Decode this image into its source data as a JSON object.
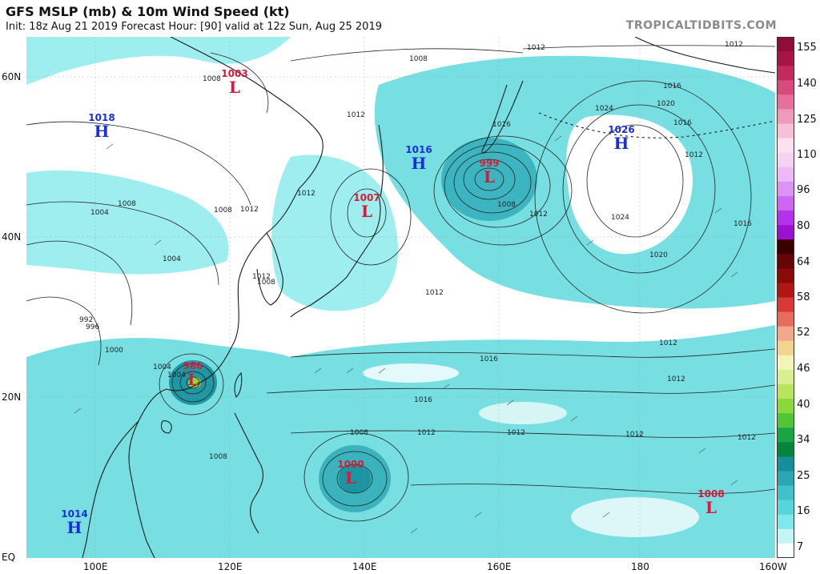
{
  "header": {
    "title": "GFS MSLP (mb) & 10m Wind Speed (kt)",
    "subtitle": "Init: 18z Aug 21 2019    Forecast Hour: [90]    valid at 12z Sun, Aug 25 2019",
    "brand": "TROPICALTIDBITS.COM"
  },
  "axes": {
    "lat_labels": [
      "60N",
      "40N",
      "20N",
      "EQ"
    ],
    "lon_labels": [
      "100E",
      "120E",
      "140E",
      "160E",
      "180",
      "160W"
    ]
  },
  "colorbar": {
    "labels": [
      "155",
      "140",
      "125",
      "110",
      "96",
      "80",
      "64",
      "58",
      "52",
      "46",
      "40",
      "34",
      "25",
      "16",
      "7"
    ],
    "colors": [
      "#f6fefe",
      "#c4f5f5",
      "#7ee8ea",
      "#54d6da",
      "#3fc2c9",
      "#2aa7b4",
      "#168f9c",
      "#05843e",
      "#18a645",
      "#52c436",
      "#8ad83c",
      "#b8e55c",
      "#d8ee8f",
      "#f2f5b8",
      "#f2d48f",
      "#f2a78f",
      "#e86b5c",
      "#d93838",
      "#b01616",
      "#8a0a0a",
      "#650505",
      "#3a0000",
      "#9a12cf",
      "#b532ea",
      "#cd66f2",
      "#dd93f5",
      "#ecb8f7",
      "#f6d3f3",
      "#fbe0ef",
      "#f6c0d8",
      "#ef99bb",
      "#e76f9b",
      "#d84a7c",
      "#c22a5e",
      "#a61546",
      "#8e0e36"
    ]
  },
  "pressure_centers": [
    {
      "type": "H",
      "value": "1018",
      "color": "#1a2fd8"
    },
    {
      "type": "L",
      "value": "1003",
      "color": "#d81a3a"
    },
    {
      "type": "H",
      "value": "1016",
      "color": "#1a2fd8"
    },
    {
      "type": "L",
      "value": "1007",
      "color": "#d81a3a"
    },
    {
      "type": "L",
      "value": "999",
      "color": "#d81a3a"
    },
    {
      "type": "H",
      "value": "1026",
      "color": "#1a2fd8"
    },
    {
      "type": "L",
      "value": "986",
      "color": "#d81a3a"
    },
    {
      "type": "L",
      "value": "1000",
      "color": "#d81a3a"
    },
    {
      "type": "L",
      "value": "1008",
      "color": "#d81a3a"
    },
    {
      "type": "H",
      "value": "1014",
      "color": "#1a2fd8"
    }
  ],
  "isobar_labels": [
    "1008",
    "1012",
    "1012",
    "1008",
    "1012",
    "1016",
    "1012",
    "1016",
    "1012",
    "1016",
    "1020",
    "1024",
    "1024",
    "1016",
    "1020",
    "1008",
    "1012",
    "1012",
    "1012",
    "1012",
    "1016",
    "1016",
    "1012",
    "1012",
    "1012",
    "1012",
    "1012",
    "1008",
    "1008",
    "1004",
    "1004",
    "1008",
    "1004",
    "1000",
    "992",
    "996",
    "1004",
    "1008",
    "1008",
    "1012"
  ]
}
